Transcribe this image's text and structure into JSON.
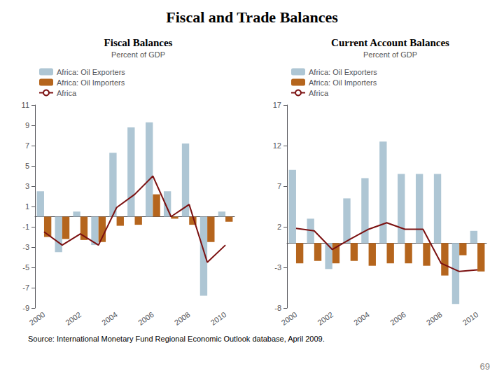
{
  "title": "Fiscal and Trade Balances",
  "annotations": [
    "Source: International Monetary Fund Regional Economic Outlook database, April 2009.",
    "69"
  ],
  "chart_data": [
    {
      "type": "bar",
      "title": "Fiscal Balances",
      "ylabel": "Percent of GDP",
      "categories": [
        "2000",
        null,
        "2002",
        null,
        "2004",
        null,
        "2006",
        null,
        "2008",
        null,
        "2010"
      ],
      "series": [
        {
          "name": "Africa: Oil Exporters",
          "type": "bar",
          "color": "#aec6d4",
          "values": [
            2.5,
            -3.5,
            0.5,
            -2.8,
            6.3,
            8.8,
            9.3,
            2.5,
            7.2,
            -7.8,
            0.5
          ]
        },
        {
          "name": "Africa: Oil Importers",
          "type": "bar",
          "color": "#b5651d",
          "values": [
            -2.0,
            -2.2,
            -2.3,
            -2.5,
            -0.9,
            -0.8,
            2.2,
            -0.2,
            -0.8,
            -2.5,
            -0.5
          ]
        },
        {
          "name": "Africa",
          "type": "line",
          "line_style": "solid",
          "color": "#7b1010",
          "values": [
            -1.5,
            -2.8,
            -1.7,
            -2.8,
            0.9,
            2.2,
            4.0,
            0.0,
            1.2,
            -4.5,
            -2.8
          ]
        }
      ],
      "ylim": [
        -9,
        11
      ],
      "yticks": [
        -9,
        -7,
        -5,
        -3,
        -1,
        1,
        3,
        5,
        7,
        9,
        11
      ],
      "grid": false,
      "legend": "upper left"
    },
    {
      "type": "bar",
      "title": "Current Account Balances",
      "ylabel": "Percent of GDP",
      "categories": [
        "2000",
        null,
        "2002",
        null,
        "2004",
        null,
        "2006",
        null,
        "2008",
        null,
        "2010"
      ],
      "series": [
        {
          "name": "Africa: Oil Exporters",
          "type": "bar",
          "color": "#aec6d4",
          "values": [
            9.0,
            3.0,
            -3.2,
            5.5,
            8.0,
            12.5,
            8.5,
            8.5,
            8.5,
            -7.5,
            1.5
          ]
        },
        {
          "name": "Africa: Oil Importers",
          "type": "bar",
          "color": "#b5651d",
          "values": [
            -2.5,
            -2.2,
            -2.5,
            -2.2,
            -2.8,
            -2.5,
            -2.5,
            -2.8,
            -4.0,
            -1.5,
            -3.5
          ]
        },
        {
          "name": "Africa",
          "type": "line",
          "line_style": "solid",
          "color": "#7b1010",
          "values": [
            1.8,
            1.5,
            -0.8,
            0.5,
            1.7,
            2.5,
            1.7,
            1.7,
            -2.5,
            -3.5,
            -3.3
          ]
        }
      ],
      "ylim": [
        -8,
        17
      ],
      "yticks": [
        -8,
        -3,
        2,
        7,
        12,
        17
      ],
      "grid": false,
      "legend": "upper left"
    }
  ]
}
